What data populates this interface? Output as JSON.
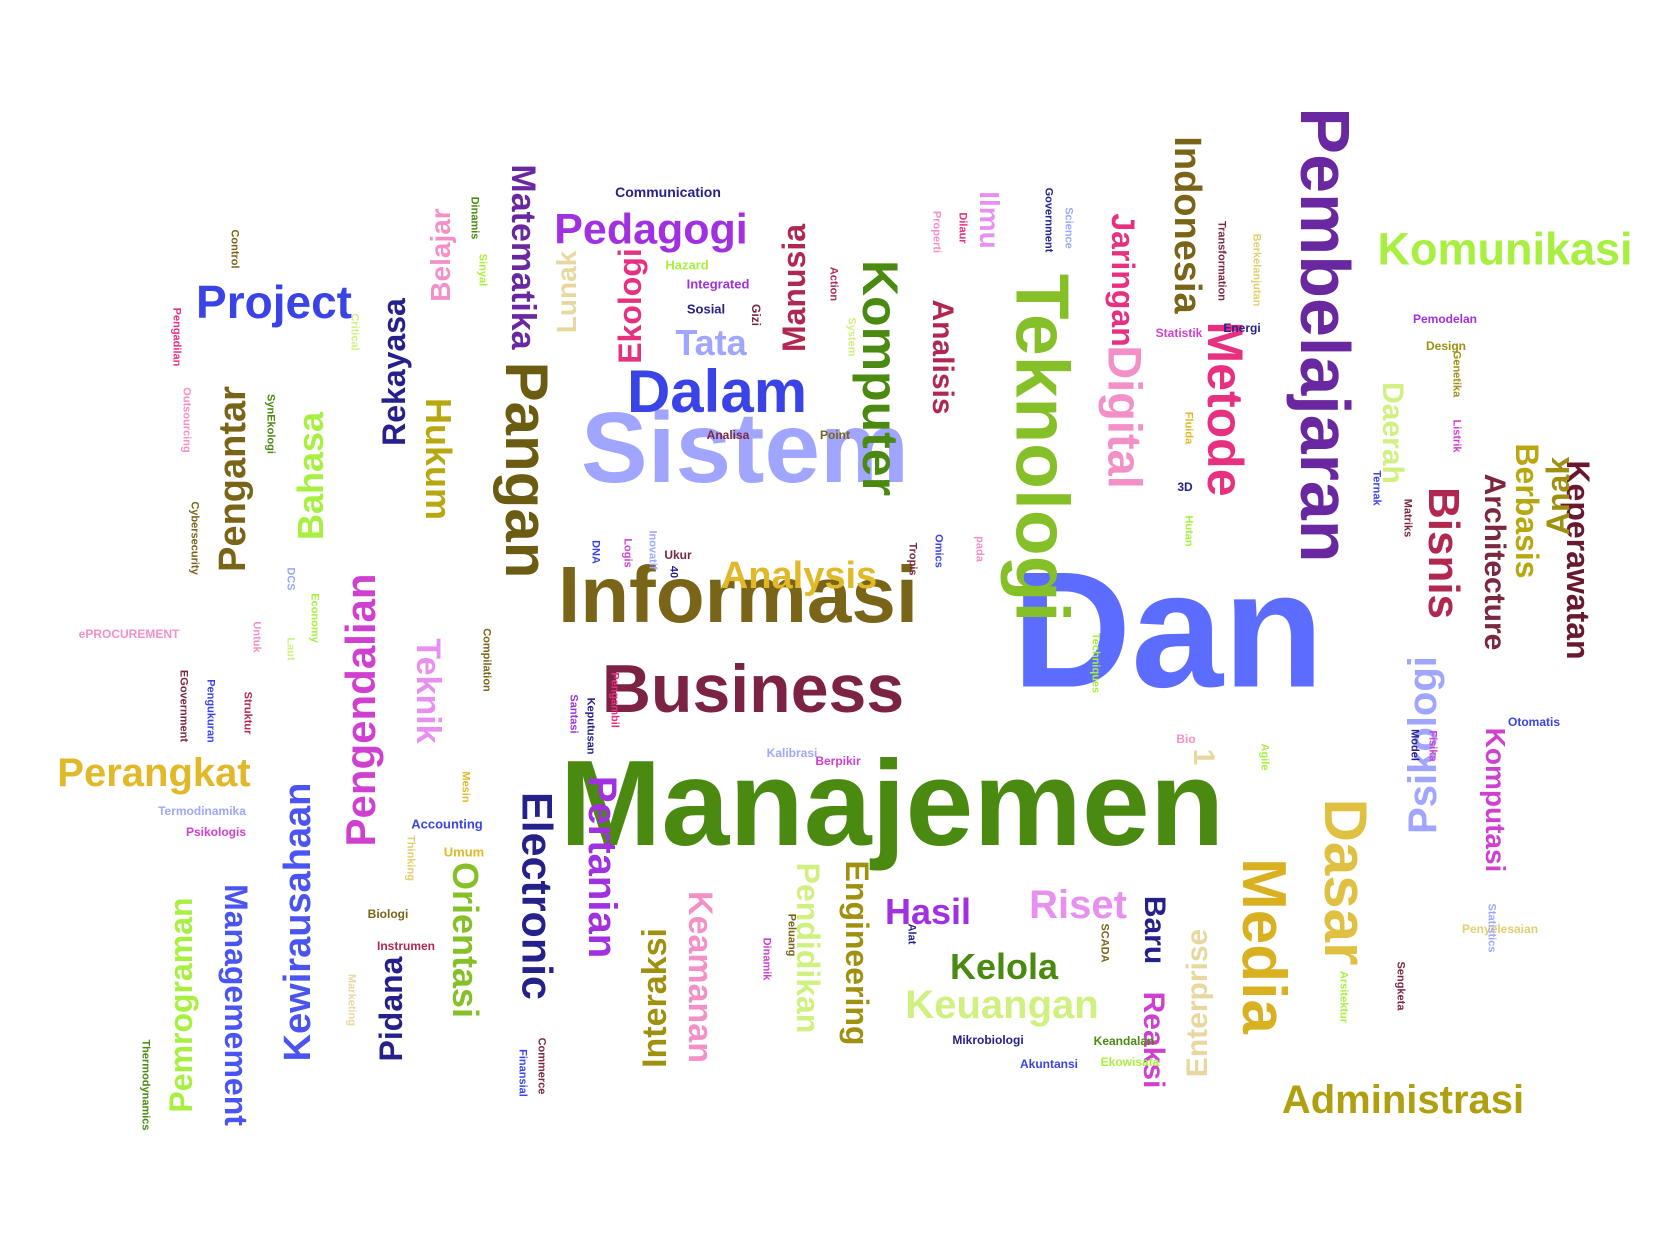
{
  "words": [
    {
      "text": "Dan",
      "color": "#5b6cff"
    },
    {
      "text": "Manajemen",
      "color": "#4a8a10"
    },
    {
      "text": "Sistem",
      "color": "#a0a6ff"
    },
    {
      "text": "Informasi",
      "color": "#7a6418"
    },
    {
      "text": "Teknologi",
      "color": "#86c028"
    },
    {
      "text": "Business",
      "color": "#7c2244"
    },
    {
      "text": "Pangan",
      "color": "#6b5c12"
    },
    {
      "text": "Pembelajaran",
      "color": "#6a28a0"
    },
    {
      "text": "Komputer",
      "color": "#4a8a10"
    },
    {
      "text": "Dalam",
      "color": "#3a44e6"
    },
    {
      "text": "Project",
      "color": "#3a44e6"
    },
    {
      "text": "Pedagogi",
      "color": "#a030e0"
    },
    {
      "text": "Komunikasi",
      "color": "#a8f040"
    },
    {
      "text": "Metode",
      "color": "#e83080"
    },
    {
      "text": "Digital",
      "color": "#f490c8"
    },
    {
      "text": "Dasar",
      "color": "#e0c040"
    },
    {
      "text": "Media",
      "color": "#d8b020"
    },
    {
      "text": "Bisnis",
      "color": "#b02850"
    },
    {
      "text": "Electronic",
      "color": "#26208a"
    },
    {
      "text": "Pertanian",
      "color": "#a030e0"
    },
    {
      "text": "Hukum",
      "color": "#b8a810"
    },
    {
      "text": "Orientasi",
      "color": "#86c028"
    },
    {
      "text": "Kewirausahaan",
      "color": "#4a54f0"
    },
    {
      "text": "Managemement",
      "color": "#4a54f0"
    },
    {
      "text": "Pemrograman",
      "color": "#a8f040"
    },
    {
      "text": "Perangkat",
      "color": "#e0b828"
    },
    {
      "text": "Administrasi",
      "color": "#b0a010"
    },
    {
      "text": "Keperawatan",
      "color": "#6a1830"
    },
    {
      "text": "Architecture",
      "color": "#7a2840"
    },
    {
      "text": "Anak",
      "color": "#a09010"
    },
    {
      "text": "Berbasis",
      "color": "#b8a810"
    },
    {
      "text": "Psikologi",
      "color": "#a0a6ff"
    },
    {
      "text": "Komputasi",
      "color": "#d040d0"
    },
    {
      "text": "Daerah",
      "color": "#d0f080"
    },
    {
      "text": "Indonesia",
      "color": "#7a6418"
    },
    {
      "text": "Jaringan",
      "color": "#e83080"
    },
    {
      "text": "Manusia",
      "color": "#b02850"
    },
    {
      "text": "Matematika",
      "color": "#6a28a0"
    },
    {
      "text": "Rekayasa",
      "color": "#26208a"
    },
    {
      "text": "Bahasa",
      "color": "#a8f040"
    },
    {
      "text": "Pengantar",
      "color": "#7a6418"
    },
    {
      "text": "Pengendalian",
      "color": "#d040d0"
    },
    {
      "text": "Teknik",
      "color": "#e890f0"
    },
    {
      "text": "Ekologi",
      "color": "#e83080"
    },
    {
      "text": "Lunak",
      "color": "#e8d8a0"
    },
    {
      "text": "Analisis",
      "color": "#b02850"
    },
    {
      "text": "Ilmu",
      "color": "#e890f0"
    },
    {
      "text": "Tata",
      "color": "#a0a6ff"
    },
    {
      "text": "Analysis",
      "color": "#e0b828"
    },
    {
      "text": "Belajar",
      "color": "#f490c8"
    },
    {
      "text": "Interaksi",
      "color": "#a09010"
    },
    {
      "text": "Keamanan",
      "color": "#f490c8"
    },
    {
      "text": "Pendidikan",
      "color": "#d0f080"
    },
    {
      "text": "Engineering",
      "color": "#a09010"
    },
    {
      "text": "Hasil",
      "color": "#a030e0"
    },
    {
      "text": "Riset",
      "color": "#e890f0"
    },
    {
      "text": "Kelola",
      "color": "#4a8a10"
    },
    {
      "text": "Keuangan",
      "color": "#d0f080"
    },
    {
      "text": "Baru",
      "color": "#26208a"
    },
    {
      "text": "Reaksi",
      "color": "#d040d0"
    },
    {
      "text": "Enterprise",
      "color": "#e8d8a0"
    },
    {
      "text": "Pidana",
      "color": "#26208a"
    },
    {
      "text": "Communication",
      "color": "#26208a"
    },
    {
      "text": "Hazard",
      "color": "#a8f040"
    },
    {
      "text": "Integrated",
      "color": "#a030e0"
    },
    {
      "text": "Sosial",
      "color": "#26208a"
    },
    {
      "text": "Gizi",
      "color": "#7a2840"
    },
    {
      "text": "Analisa",
      "color": "#7a2840"
    },
    {
      "text": "Point",
      "color": "#7a6418"
    },
    {
      "text": "Statistik",
      "color": "#d040d0"
    },
    {
      "text": "Energi",
      "color": "#26208a"
    },
    {
      "text": "Pemodelan",
      "color": "#a030e0"
    },
    {
      "text": "Design",
      "color": "#a09010"
    },
    {
      "text": "Otomatis",
      "color": "#3a44e6"
    },
    {
      "text": "Penyelesaian",
      "color": "#e0d070"
    },
    {
      "text": "Accounting",
      "color": "#3a44e6"
    },
    {
      "text": "Umum",
      "color": "#e0b828"
    },
    {
      "text": "Biologi",
      "color": "#7a6418"
    },
    {
      "text": "Instrumen",
      "color": "#b02850"
    },
    {
      "text": "Termodinamika",
      "color": "#a0a6ff"
    },
    {
      "text": "Psikologis",
      "color": "#d040d0"
    },
    {
      "text": "ePROCUREMENT",
      "color": "#f490c8"
    },
    {
      "text": "Kalibrasi",
      "color": "#a0a6ff"
    },
    {
      "text": "Berpikir",
      "color": "#d040d0"
    },
    {
      "text": "Mikrobiologi",
      "color": "#26208a"
    },
    {
      "text": "Akuntansi",
      "color": "#3a44e6"
    },
    {
      "text": "Keandalan",
      "color": "#4a8a10"
    },
    {
      "text": "Ekowisata",
      "color": "#a8f040"
    },
    {
      "text": "Bio",
      "color": "#f490c8"
    },
    {
      "text": "1",
      "color": "#e8d8a0"
    },
    {
      "text": "Control",
      "color": "#7a6418"
    },
    {
      "text": "Pengadilan",
      "color": "#e83080"
    },
    {
      "text": "Outsourcing",
      "color": "#f490c8"
    },
    {
      "text": "Cybersecurity",
      "color": "#7a6418"
    },
    {
      "text": "Critical",
      "color": "#d0f080"
    },
    {
      "text": "SynEkologi",
      "color": "#4a8a10"
    },
    {
      "text": "DCS",
      "color": "#a0a6ff"
    },
    {
      "text": "Economy",
      "color": "#a8f040"
    },
    {
      "text": "Laut",
      "color": "#d0f080"
    },
    {
      "text": "Untuk",
      "color": "#f490c8"
    },
    {
      "text": "Sinyal",
      "color": "#a8f040"
    },
    {
      "text": "Dinamis",
      "color": "#4a8a10"
    },
    {
      "text": "Struktur",
      "color": "#b02850"
    },
    {
      "text": "Pengukuran",
      "color": "#3a44e6"
    },
    {
      "text": "EGovernment",
      "color": "#7a2840"
    },
    {
      "text": "Compilation",
      "color": "#7a6418"
    },
    {
      "text": "Mesin",
      "color": "#e0b828"
    },
    {
      "text": "Thinking",
      "color": "#e0d070"
    },
    {
      "text": "Marketing",
      "color": "#e8d8a0"
    },
    {
      "text": "Thermodynamics",
      "color": "#4a8a10"
    },
    {
      "text": "Finansial",
      "color": "#3a44e6"
    },
    {
      "text": "Commerce",
      "color": "#7a2840"
    },
    {
      "text": "Santasi",
      "color": "#a030e0"
    },
    {
      "text": "Keputusan",
      "color": "#26208a"
    },
    {
      "text": "Pengambil",
      "color": "#e83080"
    },
    {
      "text": "DNA",
      "color": "#3a44e6"
    },
    {
      "text": "Logis",
      "color": "#d040d0"
    },
    {
      "text": "Inovatif",
      "color": "#a0a6ff"
    },
    {
      "text": "Ukur",
      "color": "#7a2840"
    },
    {
      "text": "40",
      "color": "#26208a"
    },
    {
      "text": "Tropis",
      "color": "#7a2840"
    },
    {
      "text": "Omics",
      "color": "#3a44e6"
    },
    {
      "text": "pada",
      "color": "#f490c8"
    },
    {
      "text": "Techniques",
      "color": "#a8f040"
    },
    {
      "text": "Properti",
      "color": "#f490c8"
    },
    {
      "text": "Dilaur",
      "color": "#e83080"
    },
    {
      "text": "Action",
      "color": "#b02850"
    },
    {
      "text": "System",
      "color": "#d0f080"
    },
    {
      "text": "Government",
      "color": "#26208a"
    },
    {
      "text": "Science",
      "color": "#a0a6ff"
    },
    {
      "text": "Transformation",
      "color": "#7a2840"
    },
    {
      "text": "Berkelanjutan",
      "color": "#e0d070"
    },
    {
      "text": "Genetika",
      "color": "#a09010"
    },
    {
      "text": "Listrik",
      "color": "#d040d0"
    },
    {
      "text": "Fluida",
      "color": "#e0b828"
    },
    {
      "text": "3D",
      "color": "#26208a"
    },
    {
      "text": "Hutan",
      "color": "#a8f040"
    },
    {
      "text": "Ternak",
      "color": "#3a44e6"
    },
    {
      "text": "Matriks",
      "color": "#7a2840"
    },
    {
      "text": "Model",
      "color": "#26208a"
    },
    {
      "text": "Fisika",
      "color": "#d040d0"
    },
    {
      "text": "Agile",
      "color": "#a8f040"
    },
    {
      "text": "Statistics",
      "color": "#a0a6ff"
    },
    {
      "text": "Arsitektur",
      "color": "#a8f040"
    },
    {
      "text": "Sengketa",
      "color": "#7a2840"
    },
    {
      "text": "SCADA",
      "color": "#7a6418"
    },
    {
      "text": "Alat",
      "color": "#26208a"
    },
    {
      "text": "Dinamik",
      "color": "#d040d0"
    },
    {
      "text": "Peluang",
      "color": "#7a6418"
    }
  ]
}
